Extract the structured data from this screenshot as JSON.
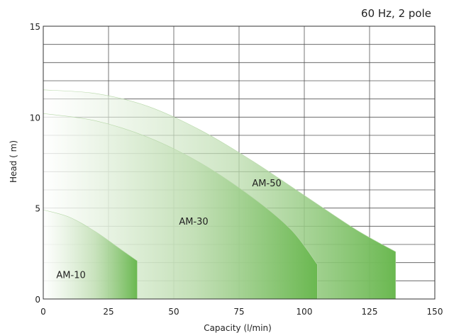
{
  "chart_data": {
    "type": "area",
    "subtitle": "60 Hz, 2 pole",
    "xlabel": "Capacity (l/min)",
    "ylabel": "Head ( m)",
    "xlim": [
      0,
      150
    ],
    "ylim": [
      0,
      15
    ],
    "x_ticks": [
      0,
      25,
      50,
      75,
      100,
      125,
      150
    ],
    "y_ticks": [
      0,
      5,
      10,
      15
    ],
    "grid": true,
    "series": [
      {
        "name": "AM-50",
        "color": "#6ab850",
        "points": [
          [
            0,
            11.5
          ],
          [
            20,
            11.3
          ],
          [
            40,
            10.6
          ],
          [
            60,
            9.3
          ],
          [
            80,
            7.6
          ],
          [
            100,
            5.7
          ],
          [
            120,
            3.8
          ],
          [
            135,
            2.6
          ]
        ],
        "x_end": 135
      },
      {
        "name": "AM-30",
        "color": "#6ab850",
        "points": [
          [
            0,
            10.2
          ],
          [
            20,
            9.8
          ],
          [
            40,
            8.9
          ],
          [
            60,
            7.5
          ],
          [
            80,
            5.6
          ],
          [
            95,
            3.8
          ],
          [
            105,
            1.9
          ]
        ],
        "x_end": 105
      },
      {
        "name": "AM-10",
        "color": "#6ab850",
        "points": [
          [
            0,
            4.9
          ],
          [
            10,
            4.5
          ],
          [
            20,
            3.7
          ],
          [
            30,
            2.7
          ],
          [
            36,
            2.1
          ]
        ],
        "x_end": 36
      }
    ]
  }
}
